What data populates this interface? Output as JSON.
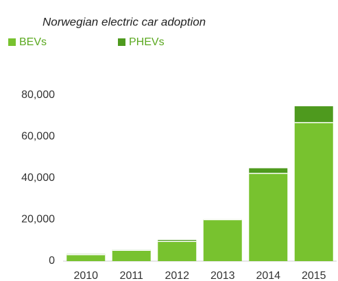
{
  "chart_data": {
    "type": "stacked_bar",
    "subtitle": "Norwegian electric car adoption",
    "categories": [
      "2010",
      "2011",
      "2012",
      "2013",
      "2014",
      "2015"
    ],
    "series": [
      {
        "name": "BEVs",
        "color": "#78c22f",
        "values": [
          3100,
          5200,
          9500,
          20000,
          42300,
          66800
        ]
      },
      {
        "name": "PHEVs",
        "color": "#4e9a1e",
        "values": [
          300,
          300,
          700,
          200,
          2500,
          7900
        ]
      }
    ],
    "ylim": [
      0,
      80000
    ],
    "yticks": [
      0,
      {
        "value": 20000,
        "label": "20,000"
      },
      {
        "value": 40000,
        "label": "40,000"
      },
      {
        "value": 60000,
        "label": "60,000"
      },
      {
        "value": 80000,
        "label": "80,000"
      }
    ],
    "grid": false
  }
}
